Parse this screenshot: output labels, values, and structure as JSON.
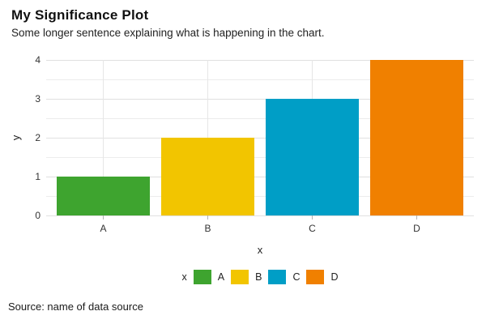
{
  "header": {
    "title": "My Significance Plot",
    "subtitle": "Some longer sentence explaining what is happening in the chart."
  },
  "chart_data": {
    "type": "bar",
    "categories": [
      "A",
      "B",
      "C",
      "D"
    ],
    "values": [
      1,
      2,
      3,
      4
    ],
    "bar_colors": [
      "#3EA42F",
      "#F2C500",
      "#009EC6",
      "#F08000"
    ],
    "title": "My Significance Plot",
    "subtitle": "Some longer sentence explaining what is happening in the chart.",
    "xlabel": "x",
    "ylabel": "y",
    "ylim": [
      0,
      4
    ],
    "y_ticks": [
      0,
      1,
      2,
      3,
      4
    ],
    "y_minor_step": 0.5,
    "grid": "on",
    "legend": {
      "title": "x",
      "position": "bottom",
      "entries": [
        {
          "label": "A",
          "color": "#3EA42F"
        },
        {
          "label": "B",
          "color": "#F2C500"
        },
        {
          "label": "C",
          "color": "#009EC6"
        },
        {
          "label": "D",
          "color": "#F08000"
        }
      ]
    }
  },
  "footer": {
    "source": "Source: name of data source"
  }
}
